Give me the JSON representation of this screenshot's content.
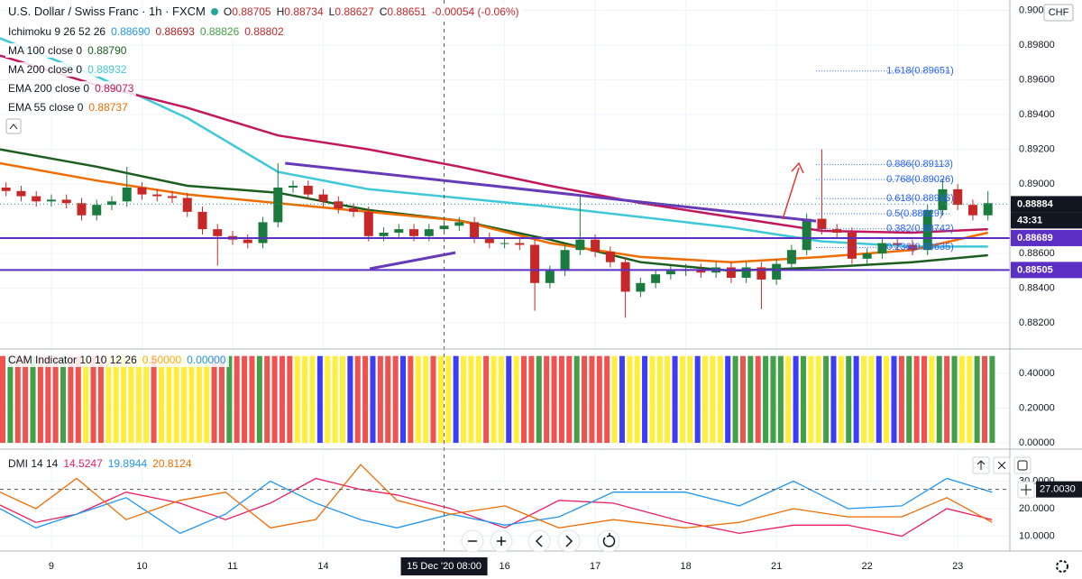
{
  "header": {
    "symbol": "U.S. Dollar / Swiss Franc · 1h · FXCM",
    "currency": "CHF",
    "ohlc": [
      {
        "label": "O",
        "value": "0.88705"
      },
      {
        "label": "H",
        "value": "0.88734"
      },
      {
        "label": "L",
        "value": "0.88627"
      },
      {
        "label": "C",
        "value": "0.88651"
      }
    ],
    "change": "-0.00054 (-0.06%)"
  },
  "chart_data": [
    {
      "type": "candlestick",
      "up_color": "#1b7a3d",
      "down_color": "#c62828",
      "xlim": [
        -13.6,
        253.8
      ],
      "ylim": [
        0.88055,
        0.9006
      ],
      "yticks": [
        {
          "value": 0.882,
          "label": "0.88200"
        },
        {
          "value": 0.884,
          "label": "0.88400"
        },
        {
          "value": 0.886,
          "label": "0.88600"
        },
        {
          "value": 0.89,
          "label": "0.89000"
        },
        {
          "value": 0.892,
          "label": "0.89200"
        },
        {
          "value": 0.894,
          "label": "0.89400"
        },
        {
          "value": 0.896,
          "label": "0.89600"
        },
        {
          "value": 0.898,
          "label": "0.89800"
        },
        {
          "value": 0.9,
          "label": "0.90000"
        }
      ],
      "ichimoku": {
        "name": "Ichimoku 9 26 52 26",
        "values": [
          {
            "text": "0.88690",
            "color": "#2196f3"
          },
          {
            "text": "0.88693",
            "color": "#b71c1c"
          },
          {
            "text": "0.88826",
            "color": "#43a047"
          },
          {
            "text": "0.88802",
            "color": "#c62828"
          }
        ]
      },
      "x": [
        -12,
        -8,
        -4,
        0,
        4,
        8,
        12,
        16,
        20,
        24,
        28,
        32,
        36,
        40,
        44,
        48,
        52,
        56,
        60,
        64,
        68,
        72,
        76,
        80,
        84,
        88,
        92,
        96,
        100,
        104,
        108,
        112,
        116,
        120,
        124,
        128,
        132,
        136,
        140,
        144,
        148,
        152,
        156,
        160,
        164,
        168,
        172,
        176,
        180,
        184,
        188,
        192,
        196,
        200,
        204,
        208,
        212,
        216,
        220,
        224,
        228,
        232,
        236,
        240,
        244,
        248
      ],
      "open": [
        0.8898,
        0.8896,
        0.8893,
        0.889,
        0.8891,
        0.8889,
        0.8882,
        0.8888,
        0.889,
        0.8898,
        0.8894,
        0.8893,
        0.8892,
        0.8884,
        0.8874,
        0.887,
        0.8868,
        0.8866,
        0.8878,
        0.8898,
        0.8899,
        0.8894,
        0.889,
        0.8886,
        0.8884,
        0.887,
        0.8872,
        0.8874,
        0.887,
        0.8874,
        0.8876,
        0.8878,
        0.8869,
        0.8866,
        0.8866,
        0.8865,
        0.8843,
        0.885,
        0.8862,
        0.8868,
        0.8861,
        0.8855,
        0.8838,
        0.8843,
        0.8848,
        0.885,
        0.8851,
        0.8849,
        0.8852,
        0.8846,
        0.8852,
        0.8845,
        0.8854,
        0.8862,
        0.888,
        0.8874,
        0.8872,
        0.8857,
        0.886,
        0.8866,
        0.8865,
        0.8862,
        0.8885,
        0.8897,
        0.8888,
        0.8882
      ],
      "high": [
        0.8901,
        0.8899,
        0.8896,
        0.8894,
        0.8894,
        0.8892,
        0.8891,
        0.8893,
        0.891,
        0.8901,
        0.8897,
        0.8896,
        0.8895,
        0.8887,
        0.8877,
        0.8873,
        0.8871,
        0.8881,
        0.8912,
        0.8902,
        0.8902,
        0.8897,
        0.8893,
        0.8889,
        0.8887,
        0.8875,
        0.8877,
        0.8877,
        0.8877,
        0.8879,
        0.8881,
        0.8881,
        0.8872,
        0.8869,
        0.8869,
        0.8868,
        0.8853,
        0.8865,
        0.8893,
        0.8871,
        0.8864,
        0.8858,
        0.8846,
        0.8851,
        0.8853,
        0.8854,
        0.8854,
        0.8855,
        0.8855,
        0.8855,
        0.8855,
        0.8857,
        0.8865,
        0.8883,
        0.892,
        0.8877,
        0.8875,
        0.8863,
        0.8869,
        0.8869,
        0.8868,
        0.8888,
        0.8903,
        0.89,
        0.8891,
        0.8896
      ],
      "low": [
        0.8893,
        0.889,
        0.8887,
        0.8887,
        0.8886,
        0.8879,
        0.8879,
        0.8885,
        0.8887,
        0.8891,
        0.889,
        0.8889,
        0.8881,
        0.8871,
        0.8853,
        0.8865,
        0.8863,
        0.8863,
        0.8875,
        0.8895,
        0.8891,
        0.8887,
        0.8883,
        0.8881,
        0.8867,
        0.8867,
        0.8869,
        0.8867,
        0.8867,
        0.8871,
        0.8873,
        0.8866,
        0.8863,
        0.8863,
        0.8862,
        0.8827,
        0.884,
        0.8847,
        0.8859,
        0.8858,
        0.8852,
        0.8823,
        0.8835,
        0.884,
        0.8845,
        0.8847,
        0.8846,
        0.8846,
        0.8843,
        0.8843,
        0.8828,
        0.8842,
        0.8851,
        0.8859,
        0.8871,
        0.8869,
        0.8854,
        0.8854,
        0.8857,
        0.8862,
        0.8859,
        0.8859,
        0.8882,
        0.8885,
        0.8879,
        0.8879
      ],
      "close": [
        0.8896,
        0.8893,
        0.889,
        0.8891,
        0.8889,
        0.8882,
        0.8888,
        0.889,
        0.8898,
        0.8894,
        0.8893,
        0.8892,
        0.8884,
        0.8874,
        0.887,
        0.8868,
        0.8866,
        0.8878,
        0.8898,
        0.8899,
        0.8894,
        0.889,
        0.8886,
        0.8884,
        0.887,
        0.8872,
        0.8874,
        0.887,
        0.8874,
        0.8876,
        0.8878,
        0.8869,
        0.8866,
        0.8866,
        0.8865,
        0.8843,
        0.885,
        0.8862,
        0.8868,
        0.8861,
        0.8855,
        0.8838,
        0.8843,
        0.8848,
        0.885,
        0.8851,
        0.8849,
        0.8852,
        0.8846,
        0.8852,
        0.8845,
        0.8854,
        0.8862,
        0.888,
        0.8874,
        0.8872,
        0.8857,
        0.886,
        0.8866,
        0.8865,
        0.8862,
        0.8885,
        0.8897,
        0.8888,
        0.8882,
        0.8889
      ],
      "lines": [
        {
          "name": "MA 100 close 0",
          "last": "0.88790",
          "color": "#1b5e20",
          "x": [
            -13.6,
            12,
            36,
            60,
            84,
            108,
            132,
            156,
            180,
            204,
            228,
            248
          ],
          "values": [
            0.892,
            0.891,
            0.8899,
            0.8895,
            0.8885,
            0.8879,
            0.8868,
            0.8855,
            0.885,
            0.8852,
            0.8855,
            0.8859
          ]
        },
        {
          "name": "MA 200 close 0",
          "last": "0.88932",
          "color": "#3fc8d8",
          "x": [
            -13.6,
            12,
            36,
            60,
            84,
            108,
            132,
            156,
            180,
            204,
            228,
            248
          ],
          "values": [
            0.8984,
            0.8962,
            0.8938,
            0.8907,
            0.8897,
            0.8892,
            0.8887,
            0.8881,
            0.8875,
            0.8867,
            0.8864,
            0.8864
          ]
        },
        {
          "name": "EMA 200 close 0",
          "last": "0.89073",
          "color": "#c2185b",
          "x": [
            -13.6,
            12,
            36,
            60,
            84,
            108,
            132,
            156,
            180,
            204,
            228,
            248
          ],
          "values": [
            0.8974,
            0.8957,
            0.8944,
            0.8928,
            0.892,
            0.891,
            0.8899,
            0.8889,
            0.8881,
            0.8873,
            0.8872,
            0.8874
          ]
        },
        {
          "name": "EMA 55 close 0",
          "last": "0.88737",
          "color": "#ef6c00",
          "x": [
            -13.6,
            12,
            36,
            60,
            84,
            108,
            132,
            156,
            180,
            204,
            228,
            248
          ],
          "values": [
            0.8912,
            0.8902,
            0.8894,
            0.8889,
            0.8884,
            0.8879,
            0.8866,
            0.8858,
            0.8855,
            0.8858,
            0.8862,
            0.8872
          ]
        }
      ],
      "trendlines": [
        {
          "color": "#673ab7",
          "x": [
            61.9,
            202.5
          ],
          "values": [
            0.8912,
            0.88787
          ]
        },
        {
          "color": "#673ab7",
          "x": [
            84.3,
            107
          ],
          "values": [
            0.88512,
            0.88605
          ]
        }
      ],
      "fib": {
        "color": "#2962ff",
        "x": [
          202.5,
          238.3
        ],
        "levels": [
          {
            "value": 0.89651,
            "label": "1.618(0.89651)"
          },
          {
            "value": 0.89113,
            "label": "0.886(0.89113)"
          },
          {
            "value": 0.89026,
            "label": "0.768(0.89026)"
          },
          {
            "value": 0.88916,
            "label": "0.618(0.88916)"
          },
          {
            "value": 0.88829,
            "label": "0.5(0.88829)"
          },
          {
            "value": 0.88742,
            "label": "0.382(0.88742)"
          },
          {
            "value": 0.88635,
            "label": "0.236(0.88635)"
          }
        ]
      },
      "levels": [
        {
          "value": 0.88884,
          "color": "#131722",
          "line": "dotted"
        },
        {
          "value": 0.88689,
          "color": "#5b2ec4",
          "line": "solid"
        },
        {
          "value": 0.88505,
          "color": "#5b2ec4",
          "line": "solid"
        }
      ],
      "countdown": "43:31"
    },
    {
      "type": "stripes",
      "title": "CAM Indicator 10 10 12 26",
      "legend": [
        {
          "text": "0.50000",
          "color": "#f9a825"
        },
        {
          "text": "0.00000",
          "color": "#2196f3"
        }
      ],
      "value": 0.5,
      "xlim": [
        -13.6,
        253.8
      ],
      "ylim": [
        -0.031,
        0.535
      ],
      "x_start": -13.6,
      "x_step": 2,
      "colors": {
        "R": "#ef5350",
        "Y": "#ffee3a",
        "G": "#43a047",
        "B": "#3d3df5"
      },
      "sequence": "RGRRGRRRGRRYRRYYYYYYRYYYYYYYRRGRRRGRRRRYYYBYYYBRRBRRRBRYYRYYBYYYRYYBYRRGRRRRGRRRRYBYYBYYYBYYBYYYBGRGRGGGYBGYYGBYGBYYBYBRGRRYGRGYYGRG",
      "yticks": [
        {
          "value": 0,
          "label": "0.00000"
        },
        {
          "value": 0.2,
          "label": "0.20000"
        },
        {
          "value": 0.4,
          "label": "0.40000"
        }
      ]
    },
    {
      "type": "line",
      "title": "DMI 14 14",
      "xlim": [
        -13.6,
        253.8
      ],
      "ylim": [
        4.9,
        41
      ],
      "yticks": [
        {
          "value": 10,
          "label": "10.0000"
        },
        {
          "value": 20,
          "label": "20.0000"
        },
        {
          "value": 30,
          "label": "30.0000"
        }
      ],
      "x": [
        -13.6,
        -4.1,
        6.7,
        19.8,
        34.1,
        46.1,
        58,
        70,
        81.9,
        91.5,
        105.8,
        120.1,
        134.4,
        148.8,
        167.9,
        182.2,
        196.5,
        210.9,
        225.2,
        237.1,
        249.1
      ],
      "series": [
        {
          "last": "14.5247",
          "color": "#e91e63",
          "values": [
            21.3,
            15,
            18,
            26,
            22,
            16,
            22,
            31,
            27,
            25,
            20,
            13,
            23,
            22,
            15,
            11,
            14,
            14,
            10,
            20,
            16
          ]
        },
        {
          "last": "19.8944",
          "color": "#2196f3",
          "values": [
            20,
            13,
            18,
            24,
            11,
            18,
            30,
            22,
            16,
            13,
            18,
            14,
            17,
            26,
            26,
            21,
            30,
            20,
            21,
            31,
            26
          ]
        },
        {
          "last": "20.8124",
          "color": "#ef6c00",
          "values": [
            26,
            20,
            31,
            16,
            23,
            26,
            13,
            16,
            36,
            23,
            18,
            21,
            13,
            16,
            13,
            15,
            20,
            17,
            17,
            24,
            15
          ]
        }
      ],
      "marker": {
        "value": 27.003,
        "label": "27.0030"
      },
      "crosshair": {
        "value": 104,
        "label": "15 Dec '20  08:00"
      },
      "xticks": [
        {
          "value": 0,
          "label": "9"
        },
        {
          "value": 24,
          "label": "10"
        },
        {
          "value": 48,
          "label": "11"
        },
        {
          "value": 72,
          "label": "14"
        },
        {
          "value": 120,
          "label": "16"
        },
        {
          "value": 144,
          "label": "17"
        },
        {
          "value": 168,
          "label": "18"
        },
        {
          "value": 192,
          "label": "21"
        },
        {
          "value": 216,
          "label": "22"
        },
        {
          "value": 240,
          "label": "23"
        }
      ]
    }
  ]
}
